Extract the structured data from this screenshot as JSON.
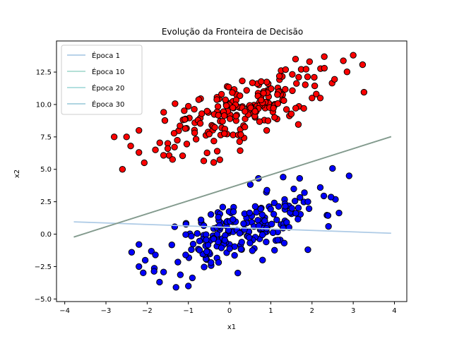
{
  "chart_data": {
    "type": "scatter",
    "title": "Evolução da Fronteira de Decisão",
    "xlabel": "x1",
    "ylabel": "x2",
    "xlim": [
      -4.2,
      4.3
    ],
    "ylim": [
      -5.2,
      14.9
    ],
    "xticks": [
      -4,
      -3,
      -2,
      -1,
      0,
      1,
      2,
      3,
      4
    ],
    "xtick_labels": [
      "−4",
      "−3",
      "−2",
      "−1",
      "0",
      "1",
      "2",
      "3",
      "4"
    ],
    "yticks": [
      -5.0,
      -2.5,
      0.0,
      2.5,
      5.0,
      7.5,
      10.0,
      12.5
    ],
    "ytick_labels": [
      "−5.0",
      "−2.5",
      "0.0",
      "2.5",
      "5.0",
      "7.5",
      "10.0",
      "12.5"
    ],
    "grid": false,
    "legend_position": "top-left",
    "colors": {
      "class_red": "#ff0000",
      "class_blue": "#0000ff",
      "edge": "#000000",
      "epoch1": "#aecbe6",
      "epoch10": "#a9dcd0",
      "epoch20": "#a8dcdc",
      "epoch30": "#a5cfdd",
      "overlap_line": "#86998c"
    },
    "lines": [
      {
        "name": "Época 1",
        "x": [
          -3.78,
          3.92
        ],
        "y": [
          0.95,
          0.07
        ],
        "color": "#aecbe6"
      },
      {
        "name": "Época 10",
        "x": [
          -3.78,
          3.92
        ],
        "y": [
          -0.22,
          7.52
        ],
        "color": "#a9dcd0"
      },
      {
        "name": "Época 20",
        "x": [
          -3.78,
          3.92
        ],
        "y": [
          -0.22,
          7.52
        ],
        "color": "#a8dcdc"
      },
      {
        "name": "Época 30",
        "x": [
          -3.78,
          3.92
        ],
        "y": [
          -0.22,
          7.52
        ],
        "color": "#86998c"
      }
    ],
    "series": [
      {
        "name": "",
        "color": "#ff0000",
        "cluster": {
          "mean": [
            0.3,
            9.6
          ],
          "sdx": 0.95,
          "sdy": 1.55,
          "rho": 0.65,
          "n": 200,
          "seed": 7
        },
        "points": [
          [
            -2.6,
            5.0
          ],
          [
            -2.8,
            7.5
          ],
          [
            -2.5,
            7.5
          ],
          [
            -2.4,
            6.8
          ],
          [
            -2.2,
            6.3
          ],
          [
            -2.2,
            8.0
          ],
          [
            -1.8,
            6.5
          ],
          [
            -1.6,
            9.4
          ],
          [
            -1.5,
            7.0
          ],
          [
            -1.5,
            6.6
          ],
          [
            3.0,
            13.8
          ],
          [
            2.3,
            12.8
          ],
          [
            1.6,
            13.5
          ],
          [
            2.0,
            10.5
          ],
          [
            2.2,
            10.5
          ],
          [
            0.9,
            8.0
          ],
          [
            1.8,
            9.7
          ],
          [
            -0.3,
            6.4
          ]
        ]
      },
      {
        "name": "",
        "color": "#0000ff",
        "cluster": {
          "mean": [
            0.3,
            0.4
          ],
          "sdx": 0.95,
          "sdy": 1.55,
          "rho": 0.65,
          "n": 200,
          "seed": 11
        },
        "points": [
          [
            2.9,
            4.5
          ],
          [
            2.4,
            0.6
          ],
          [
            2.2,
            3.6
          ],
          [
            1.9,
            2.5
          ],
          [
            1.9,
            -1.2
          ],
          [
            1.7,
            4.3
          ],
          [
            1.3,
            4.4
          ],
          [
            0.7,
            4.3
          ],
          [
            -1.7,
            -3.7
          ],
          [
            -1.3,
            -4.1
          ],
          [
            -1.0,
            -4.0
          ],
          [
            -2.2,
            -2.5
          ],
          [
            -2.2,
            -0.8
          ],
          [
            -1.8,
            -1.6
          ],
          [
            0.2,
            -3.0
          ],
          [
            0.8,
            -2.0
          ]
        ]
      }
    ]
  }
}
